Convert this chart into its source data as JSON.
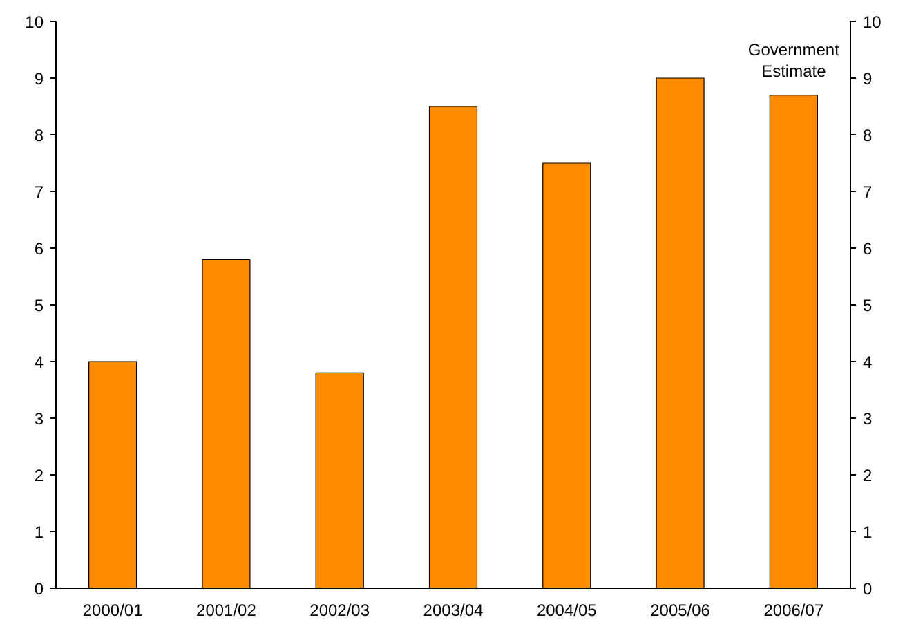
{
  "chart_data": {
    "type": "bar",
    "categories": [
      "2000/01",
      "2001/02",
      "2002/03",
      "2003/04",
      "2004/05",
      "2005/06",
      "2006/07"
    ],
    "values": [
      4.0,
      5.8,
      3.8,
      8.5,
      7.5,
      9.0,
      8.7
    ],
    "color": "#ff8c00",
    "ylim": [
      0,
      10
    ],
    "yticks": [
      0,
      1,
      2,
      3,
      4,
      5,
      6,
      7,
      8,
      9,
      10
    ],
    "y2lim": [
      0,
      10
    ],
    "y2ticks": [
      0,
      1,
      2,
      3,
      4,
      5,
      6,
      7,
      8,
      9,
      10
    ],
    "annotations": [
      {
        "text": "Government\nEstimate",
        "x": "2006/07",
        "y": 8.7
      }
    ],
    "grid": false
  }
}
